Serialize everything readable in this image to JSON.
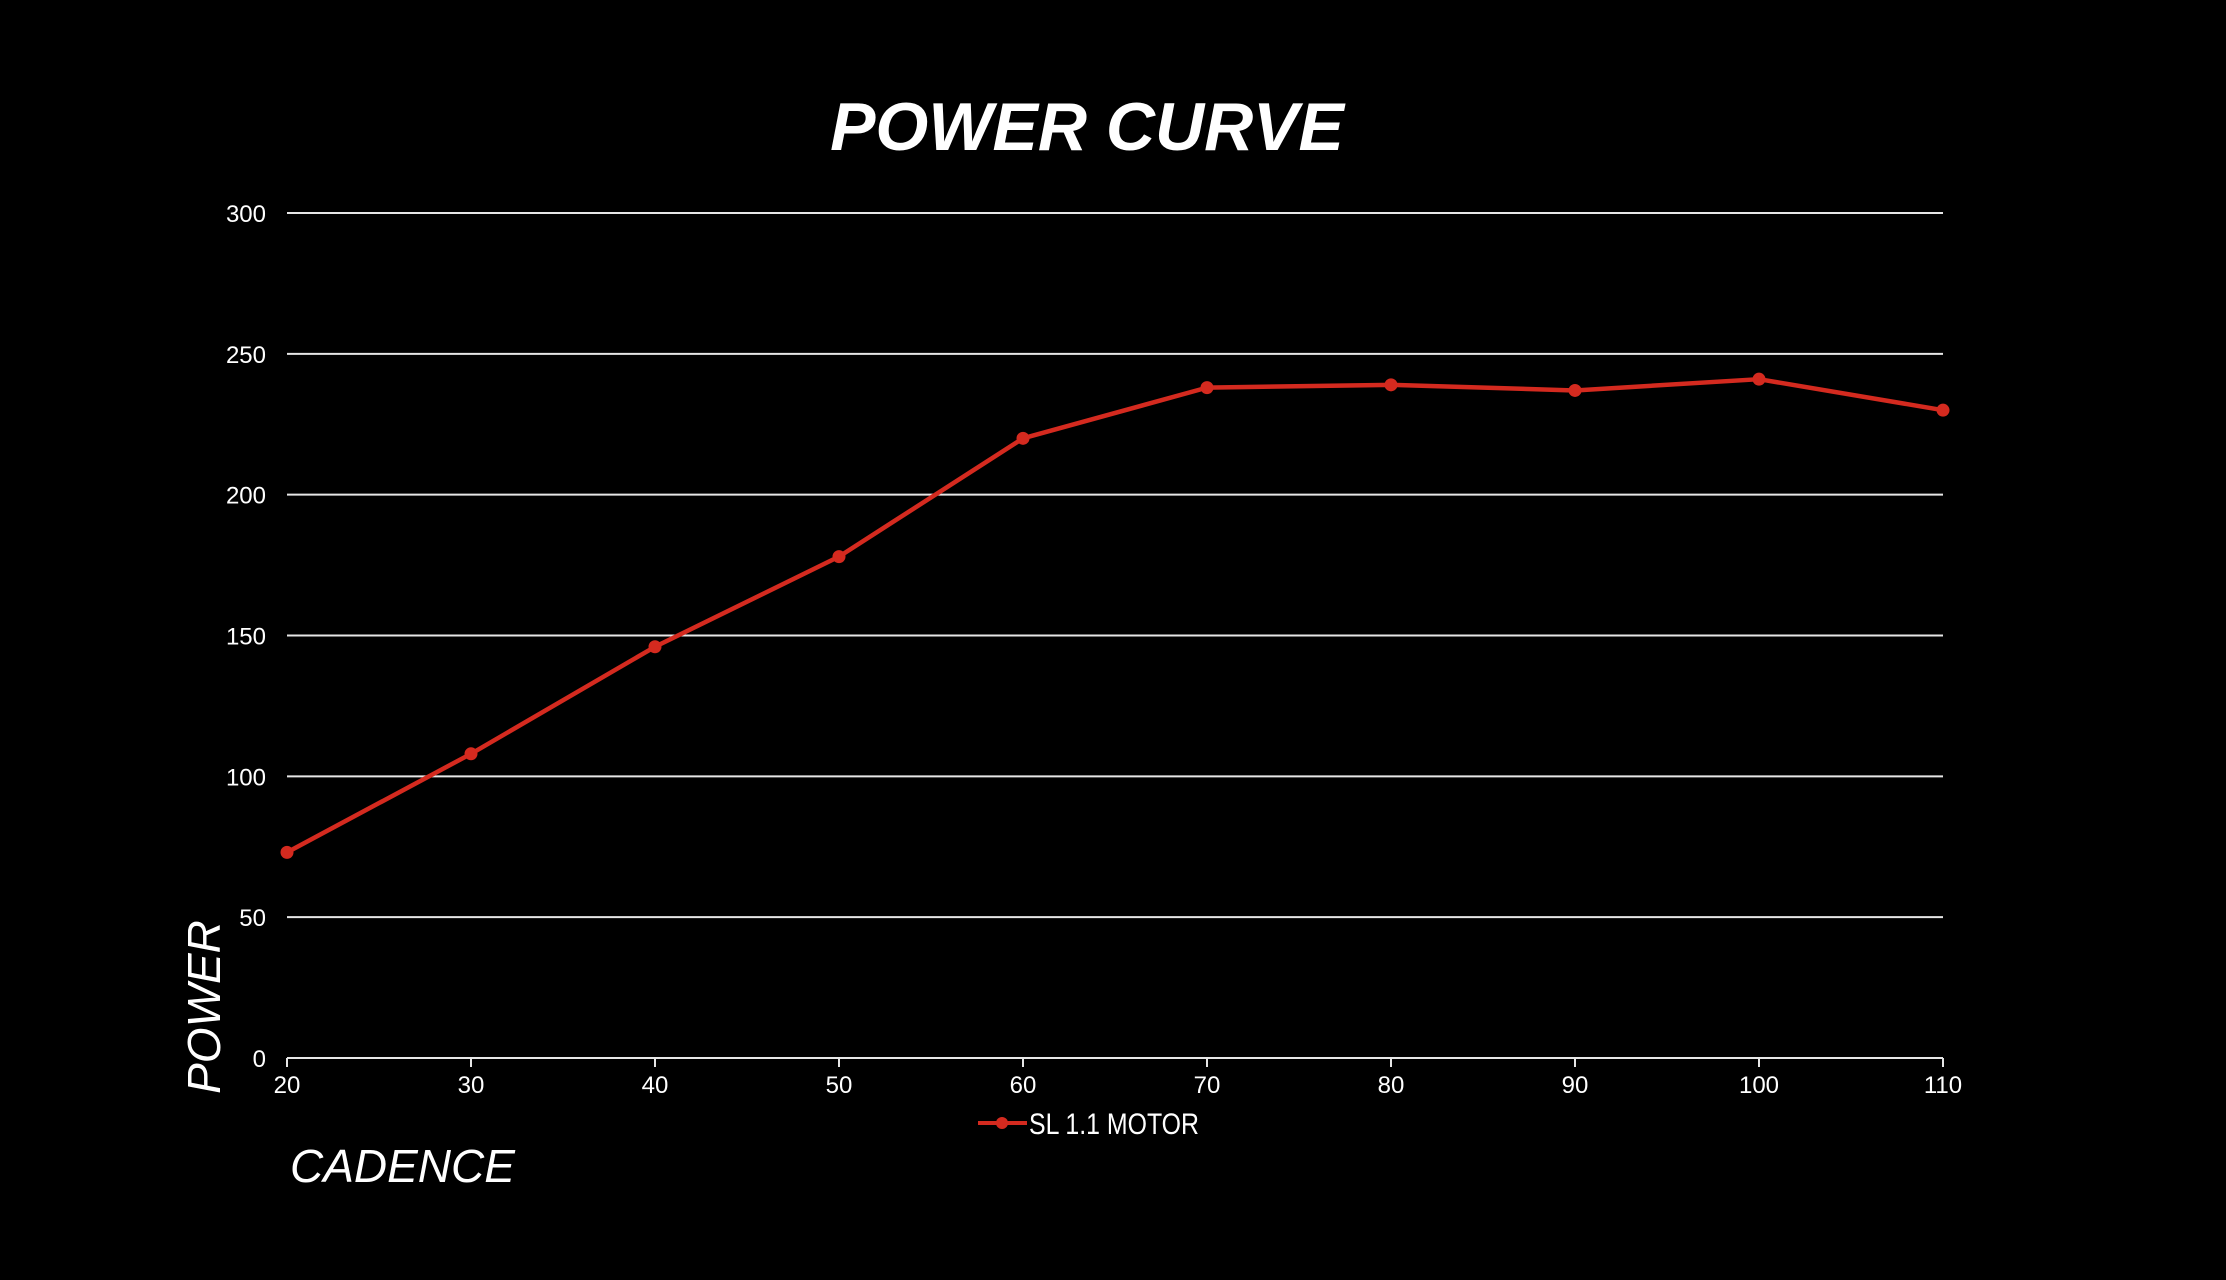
{
  "chart_data": {
    "type": "line",
    "title": "POWER CURVE",
    "xlabel": "CADENCE",
    "ylabel": "POWER",
    "x": [
      20,
      30,
      40,
      50,
      60,
      70,
      80,
      90,
      100,
      110
    ],
    "xticks": [
      "20",
      "30",
      "40",
      "50",
      "60",
      "70",
      "80",
      "90",
      "100",
      "110"
    ],
    "yticks": [
      "0",
      "50",
      "100",
      "150",
      "200",
      "250",
      "300"
    ],
    "ylim": [
      0,
      300
    ],
    "xlim": [
      20,
      110
    ],
    "grid": "horizontal",
    "legend_position": "bottom-center",
    "series": [
      {
        "name": "SL 1.1 MOTOR",
        "color": "#d42a1f",
        "values": [
          73,
          108,
          146,
          178,
          220,
          238,
          239,
          237,
          241,
          230
        ]
      }
    ],
    "colors": {
      "background": "#000000",
      "grid": "#e6e6e6",
      "text": "#ffffff"
    }
  }
}
